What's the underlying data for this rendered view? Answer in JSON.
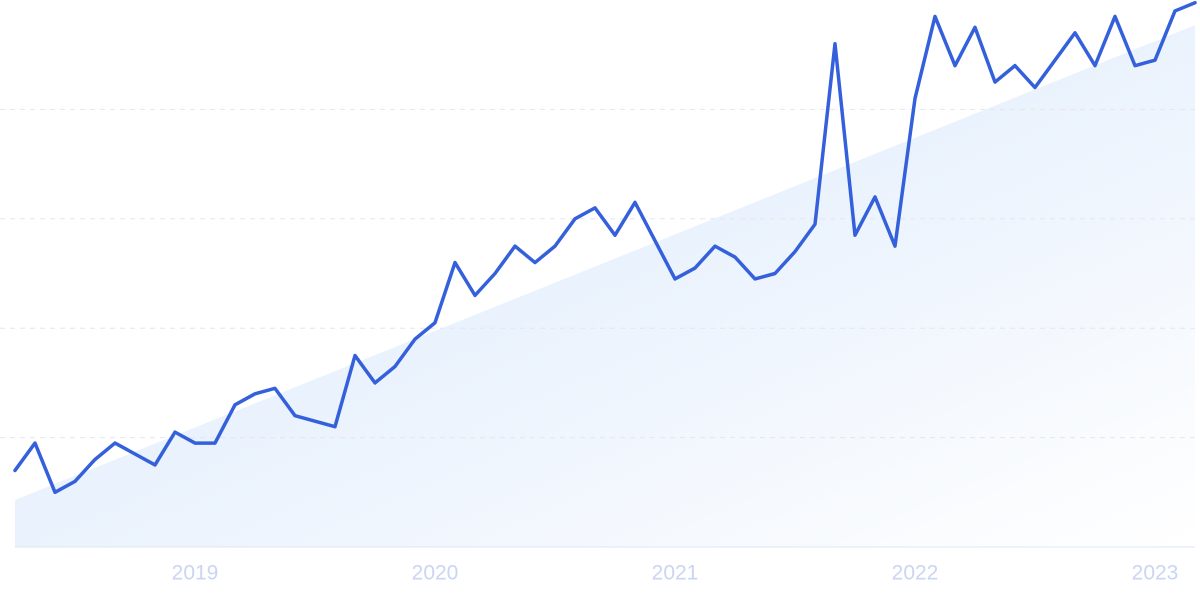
{
  "chart_data": {
    "type": "line",
    "categories": [
      null,
      null,
      null,
      null,
      null,
      null,
      null,
      null,
      null,
      "2019",
      null,
      null,
      null,
      null,
      null,
      null,
      null,
      null,
      null,
      null,
      null,
      "2020",
      null,
      null,
      null,
      null,
      null,
      null,
      null,
      null,
      null,
      null,
      null,
      "2021",
      null,
      null,
      null,
      null,
      null,
      null,
      null,
      null,
      null,
      null,
      null,
      "2022",
      null,
      null,
      null,
      null,
      null,
      null,
      null,
      null,
      null,
      null,
      null,
      "2023",
      null,
      null
    ],
    "series": [
      {
        "color": "#3560dc",
        "values": [
          14,
          19,
          10,
          12,
          16,
          19,
          17,
          15,
          21,
          19,
          19,
          26,
          28,
          29,
          24,
          23,
          22,
          35,
          30,
          33,
          38,
          41,
          52,
          46,
          50,
          55,
          52,
          55,
          60,
          62,
          57,
          63,
          56,
          49,
          51,
          55,
          53,
          49,
          50,
          54,
          59,
          92,
          57,
          64,
          55,
          82,
          97,
          88,
          95,
          85,
          88,
          84,
          89,
          94,
          88,
          97,
          88,
          89,
          98,
          99.5
        ]
      }
    ],
    "trend": [
      8.6,
      95.4
    ],
    "trend_color": "#d6e6fb",
    "ylim": [
      0,
      100
    ],
    "yticks": [
      20,
      40,
      60,
      80
    ],
    "grid": true
  }
}
